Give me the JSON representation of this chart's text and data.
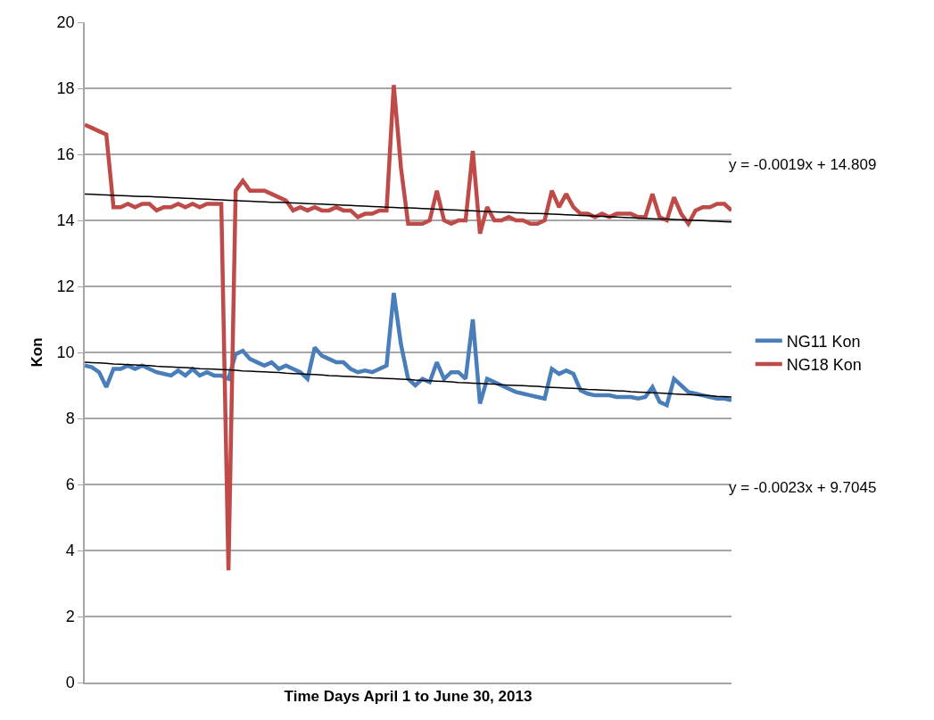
{
  "chart_data": {
    "type": "line",
    "xlabel": "Time Days April 1 to June 30, 2013",
    "ylabel": "Kon",
    "ylim": [
      0,
      20
    ],
    "yticks": [
      0,
      2,
      4,
      6,
      8,
      10,
      12,
      14,
      16,
      18,
      20
    ],
    "tick_labels": "y",
    "grid": "y",
    "legend": "right",
    "marker": "none",
    "line_style": "solid",
    "categories": [
      null,
      null,
      null,
      null,
      null,
      null,
      null,
      null,
      null,
      null,
      null,
      null,
      null,
      null,
      null,
      null,
      null,
      null,
      null,
      null,
      null,
      null,
      null,
      null,
      null,
      null,
      null,
      null,
      null,
      null,
      null,
      null,
      null,
      null,
      null,
      null,
      null,
      null,
      null,
      null,
      null,
      null,
      null,
      null,
      null,
      null,
      null,
      null,
      null,
      null,
      null,
      null,
      null,
      null,
      null,
      null,
      null,
      null,
      null,
      null,
      null,
      null,
      null,
      null,
      null,
      null,
      null,
      null,
      null,
      null,
      null,
      null,
      null,
      null,
      null,
      null,
      null,
      null,
      null,
      null,
      null,
      null,
      null,
      null,
      null,
      null,
      null,
      null,
      null,
      null,
      null
    ],
    "annotations": [
      "y = -0.0019x + 14.809",
      "y = -0.0023x + 9.7045"
    ],
    "series": [
      {
        "name": "NG11 Kon",
        "color": "#4a7ebb",
        "values": [
          9.6,
          9.55,
          9.4,
          8.95,
          9.5,
          9.5,
          9.6,
          9.5,
          9.6,
          9.5,
          9.4,
          9.35,
          9.3,
          9.45,
          9.3,
          9.5,
          9.3,
          9.4,
          9.3,
          9.3,
          9.2,
          9.95,
          10.05,
          9.8,
          9.7,
          9.6,
          9.7,
          9.5,
          9.6,
          9.5,
          9.4,
          9.2,
          10.15,
          9.9,
          9.8,
          9.7,
          9.7,
          9.5,
          9.4,
          9.45,
          9.4,
          9.5,
          9.6,
          11.8,
          10.25,
          9.2,
          9.0,
          9.2,
          9.1,
          9.7,
          9.2,
          9.4,
          9.4,
          9.2,
          11.0,
          8.45,
          9.2,
          9.1,
          9.0,
          8.9,
          8.8,
          8.75,
          8.7,
          8.65,
          8.6,
          9.5,
          9.35,
          9.45,
          9.35,
          8.85,
          8.75,
          8.7,
          8.7,
          8.7,
          8.65,
          8.65,
          8.65,
          8.6,
          8.65,
          8.95,
          8.5,
          8.4,
          9.2,
          9.0,
          8.8,
          8.75,
          8.7,
          8.65,
          8.6,
          8.6,
          8.55
        ]
      },
      {
        "name": "NG18 Kon",
        "color": "#be4b48",
        "values": [
          16.9,
          16.8,
          16.7,
          16.6,
          14.4,
          14.4,
          14.5,
          14.4,
          14.5,
          14.5,
          14.3,
          14.4,
          14.4,
          14.5,
          14.4,
          14.5,
          14.4,
          14.5,
          14.5,
          14.5,
          3.4,
          14.9,
          15.2,
          14.9,
          14.9,
          14.9,
          14.8,
          14.7,
          14.6,
          14.3,
          14.4,
          14.3,
          14.4,
          14.3,
          14.3,
          14.4,
          14.3,
          14.3,
          14.1,
          14.2,
          14.2,
          14.3,
          14.3,
          18.1,
          15.6,
          13.9,
          13.9,
          13.9,
          14.0,
          14.9,
          14.0,
          13.9,
          14.0,
          14.0,
          16.1,
          13.6,
          14.4,
          14.0,
          14.0,
          14.1,
          14.0,
          14.0,
          13.9,
          13.9,
          14.0,
          14.9,
          14.4,
          14.8,
          14.4,
          14.2,
          14.2,
          14.1,
          14.2,
          14.1,
          14.2,
          14.2,
          14.2,
          14.1,
          14.1,
          14.8,
          14.1,
          14.0,
          14.7,
          14.2,
          13.9,
          14.3,
          14.4,
          14.4,
          14.5,
          14.5,
          14.3
        ]
      },
      {
        "type": "line",
        "color": "#000000",
        "values": [
          14.8,
          14.79,
          14.78,
          14.77,
          14.76,
          14.75,
          14.74,
          14.73,
          14.72,
          14.72,
          14.71,
          14.7,
          14.69,
          14.68,
          14.67,
          14.66,
          14.65,
          14.64,
          14.63,
          14.62,
          14.61,
          14.6,
          14.59,
          14.58,
          14.57,
          14.56,
          14.55,
          14.55,
          14.54,
          14.53,
          14.52,
          14.51,
          14.5,
          14.49,
          14.48,
          14.47,
          14.46,
          14.45,
          14.44,
          14.43,
          14.42,
          14.41,
          14.4,
          14.39,
          14.38,
          14.38,
          14.37,
          14.36,
          14.35,
          14.34,
          14.33,
          14.32,
          14.31,
          14.3,
          14.29,
          14.28,
          14.27,
          14.26,
          14.25,
          14.24,
          14.23,
          14.22,
          14.21,
          14.21,
          14.2,
          14.19,
          14.18,
          14.17,
          14.16,
          14.15,
          14.14,
          14.13,
          14.12,
          14.11,
          14.1,
          14.09,
          14.08,
          14.07,
          14.06,
          14.05,
          14.04,
          14.04,
          14.03,
          14.02,
          14.01,
          14.0,
          13.99,
          13.98,
          13.97,
          13.96,
          13.95
        ]
      },
      {
        "type": "line",
        "color": "#000000",
        "values": [
          9.7,
          9.69,
          9.68,
          9.67,
          9.65,
          9.64,
          9.63,
          9.62,
          9.61,
          9.6,
          9.58,
          9.57,
          9.56,
          9.55,
          9.54,
          9.53,
          9.51,
          9.5,
          9.49,
          9.48,
          9.47,
          9.46,
          9.44,
          9.43,
          9.42,
          9.41,
          9.4,
          9.39,
          9.37,
          9.36,
          9.35,
          9.34,
          9.33,
          9.32,
          9.3,
          9.29,
          9.28,
          9.27,
          9.26,
          9.25,
          9.23,
          9.22,
          9.21,
          9.2,
          9.19,
          9.18,
          9.16,
          9.15,
          9.14,
          9.13,
          9.12,
          9.11,
          9.09,
          9.08,
          9.07,
          9.06,
          9.05,
          9.04,
          9.02,
          9.01,
          9.0,
          8.99,
          8.98,
          8.97,
          8.95,
          8.94,
          8.93,
          8.92,
          8.91,
          8.9,
          8.88,
          8.87,
          8.86,
          8.85,
          8.84,
          8.83,
          8.81,
          8.8,
          8.79,
          8.78,
          8.77,
          8.76,
          8.74,
          8.73,
          8.72,
          8.71,
          8.7,
          8.69,
          8.67,
          8.66,
          8.65
        ]
      }
    ]
  }
}
